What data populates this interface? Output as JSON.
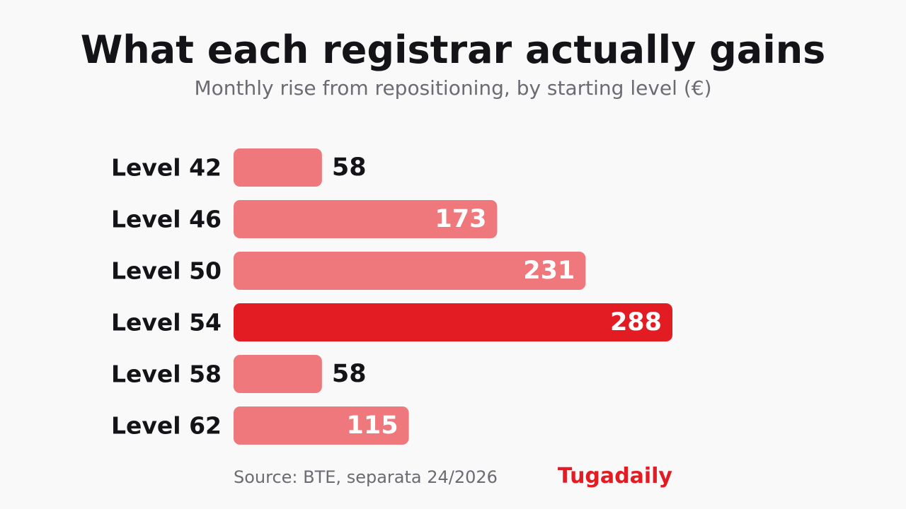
{
  "colors": {
    "background": "#f9f9f9",
    "bar": "#ee787b",
    "bar_highlight": "#e31b23",
    "label_dark": "#141418",
    "label_inside": "#ffffff",
    "muted": "#6b6b73",
    "brand": "#e31b23"
  },
  "footer": {
    "source": "Source: BTE, separata 24/2026",
    "brand": "Tugadaily"
  },
  "chart_data": {
    "type": "bar",
    "orientation": "horizontal",
    "title": "What each registrar actually gains",
    "subtitle": "Monthly rise from repositioning, by starting level (€)",
    "categories": [
      "Level 42",
      "Level 46",
      "Level 50",
      "Level 54",
      "Level 58",
      "Level 62"
    ],
    "values": [
      58,
      173,
      231,
      288,
      58,
      115
    ],
    "highlight": "Level 54",
    "xlim": [
      0,
      288
    ],
    "grid": false,
    "legend": "none"
  }
}
